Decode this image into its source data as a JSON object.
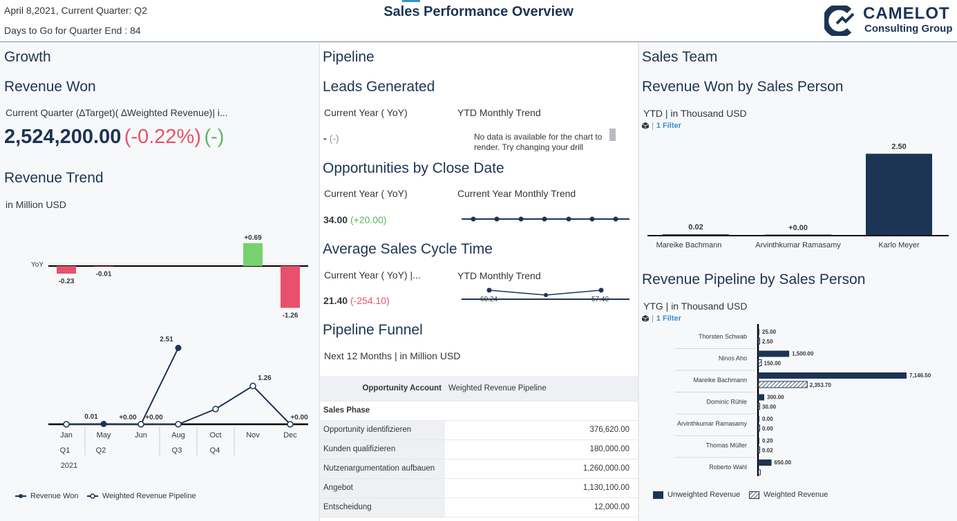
{
  "header": {
    "date_line": "April 8,2021, Current Quarter: Q2",
    "days_line": "Days to Go for Quarter End : 84",
    "title": "Sales Performance Overview",
    "logo_line1": "CAMELOT",
    "logo_line2": "Consulting Group"
  },
  "colors": {
    "navy": "#1c3454",
    "negative": "#e8506b",
    "positive": "#77d16e",
    "link": "#3b8fc6"
  },
  "growth": {
    "section_title": "Growth",
    "revenue_won": {
      "title": "Revenue Won",
      "subtitle": "Current Quarter (∆Target)( ∆Weighted Revenue)| i...",
      "value": "2,524,200.00",
      "delta_pct": "(-0.22%)",
      "delta_other": "(-)"
    },
    "revenue_trend": {
      "title": "Revenue Trend",
      "unit": "in Million USD",
      "yoy_label": "YoY",
      "yoy_labels": [
        "-0.23",
        "-0.01",
        "+0.69",
        "-1.26"
      ],
      "point_labels": [
        "0.01",
        "2.51",
        "+0.00",
        "+0.00",
        "1.26",
        "+0.00"
      ],
      "months": [
        "Jan",
        "May",
        "Jun",
        "Aug",
        "Oct",
        "Nov",
        "Dec"
      ],
      "quarters": [
        "Q1",
        "Q2",
        "Q3",
        "Q4"
      ],
      "year": "2021",
      "legend": [
        "Revenue Won",
        "Weighted Revenue Pipeline"
      ]
    }
  },
  "chart_data": [
    {
      "type": "bar",
      "categories": [
        "Jan",
        "May",
        "Jun",
        "Aug",
        "Oct",
        "Nov",
        "Dec"
      ],
      "series": [
        {
          "name": "YoY",
          "values": [
            -0.23,
            -0.01,
            null,
            null,
            null,
            0.69,
            -1.26
          ]
        }
      ]
    },
    {
      "type": "line",
      "categories": [
        "Jan",
        "May",
        "Jun",
        "Aug",
        "Oct",
        "Nov",
        "Dec"
      ],
      "series": [
        {
          "name": "Revenue Won",
          "values": [
            0,
            0.01,
            0,
            2.51,
            null,
            null,
            null
          ]
        },
        {
          "name": "Weighted Revenue Pipeline",
          "values": [
            0,
            null,
            0,
            0,
            0.5,
            1.26,
            0
          ]
        }
      ]
    },
    {
      "type": "bar",
      "categories": [
        "Mareike Bachmann",
        "Arvinthkumar Ramasamy",
        "Karlo Meyer"
      ],
      "series": [
        {
          "name": "YTD",
          "values": [
            0.02,
            0.0,
            2.5
          ]
        }
      ]
    },
    {
      "type": "bar",
      "categories": [
        "Thorsten Schwab",
        "Ninos Aho",
        "Mareike Bachmann",
        "Dominic Rühle",
        "Arvinthkumar Ramasamy",
        "Thomas Müller",
        "Roberto Wahl"
      ],
      "series": [
        {
          "name": "Unweighted Revenue",
          "values": [
            25.0,
            1500.0,
            7146.5,
            300.0,
            0.0,
            0.2,
            650.0
          ]
        },
        {
          "name": "Weighted Revenue",
          "values": [
            2.5,
            150.0,
            2353.7,
            30.0,
            0.0,
            0.02,
            null
          ]
        }
      ]
    }
  ],
  "pipeline": {
    "section_title": "Pipeline",
    "leads": {
      "title": "Leads Generated",
      "col_a": "Current Year ( YoY)",
      "col_b": "YTD Monthly Trend",
      "value": "-",
      "delta": "(-)",
      "no_data": "No data is available for the chart to render. Try changing your drill"
    },
    "opportunities": {
      "title": "Opportunities by Close Date",
      "col_a": "Current Year ( YoY)",
      "col_b": "Current Year Monthly Trend",
      "value": "34.00",
      "delta": "(+20.00)"
    },
    "cycle": {
      "title": "Average Sales Cycle Time",
      "col_a": "Current Year ( YoY) |...",
      "col_b": "YTD Monthly Trend",
      "value": "21.40",
      "delta": "(-254.10)",
      "spark_left": "60.24",
      "spark_right": "57.40"
    },
    "funnel": {
      "title": "Pipeline Funnel",
      "subtitle": "Next 12 Months | in Million USD",
      "col_header_1": "Opportunity Account",
      "col_header_2": "Weighted Revenue Pipeline",
      "phase_label": "Sales Phase",
      "rows": [
        {
          "phase": "Opportunity identifizieren",
          "value": "376,620.00"
        },
        {
          "phase": "Kunden qualifizieren",
          "value": "180,000.00"
        },
        {
          "phase": "Nutzenargumentation aufbauen",
          "value": "1,260,000.00"
        },
        {
          "phase": "Angebot",
          "value": "1,130,100.00"
        },
        {
          "phase": "Entscheidung",
          "value": "12,000.00"
        }
      ]
    }
  },
  "sales_team": {
    "section_title": "Sales Team",
    "won": {
      "title": "Revenue Won by Sales Person",
      "subtitle": "YTD | in Thousand USD",
      "filter": "1 Filter",
      "names": [
        "Mareike Bachmann",
        "Arvinthkumar Ramasamy",
        "Karlo Meyer"
      ],
      "labels": [
        "0.02",
        "+0.00",
        "2.50"
      ]
    },
    "pipeline": {
      "title": "Revenue Pipeline by Sales Person",
      "subtitle": "YTG | in Thousand USD",
      "filter": "1 Filter",
      "names": [
        "Thorsten Schwab",
        "Ninos Aho",
        "Mareike Bachmann",
        "Dominic Rühle",
        "Arvinthkumar Ramasamy",
        "Thomas Müller",
        "Roberto Wahl"
      ],
      "unweighted_labels": [
        "25.00",
        "1,500.00",
        "7,146.50",
        "300.00",
        "0.00",
        "0.20",
        "650.00"
      ],
      "weighted_labels": [
        "2.50",
        "150.00",
        "2,353.70",
        "30.00",
        "0.00",
        "0.02",
        ""
      ],
      "legend": [
        "Unweighted Revenue",
        "Weighted Revenue"
      ]
    }
  }
}
